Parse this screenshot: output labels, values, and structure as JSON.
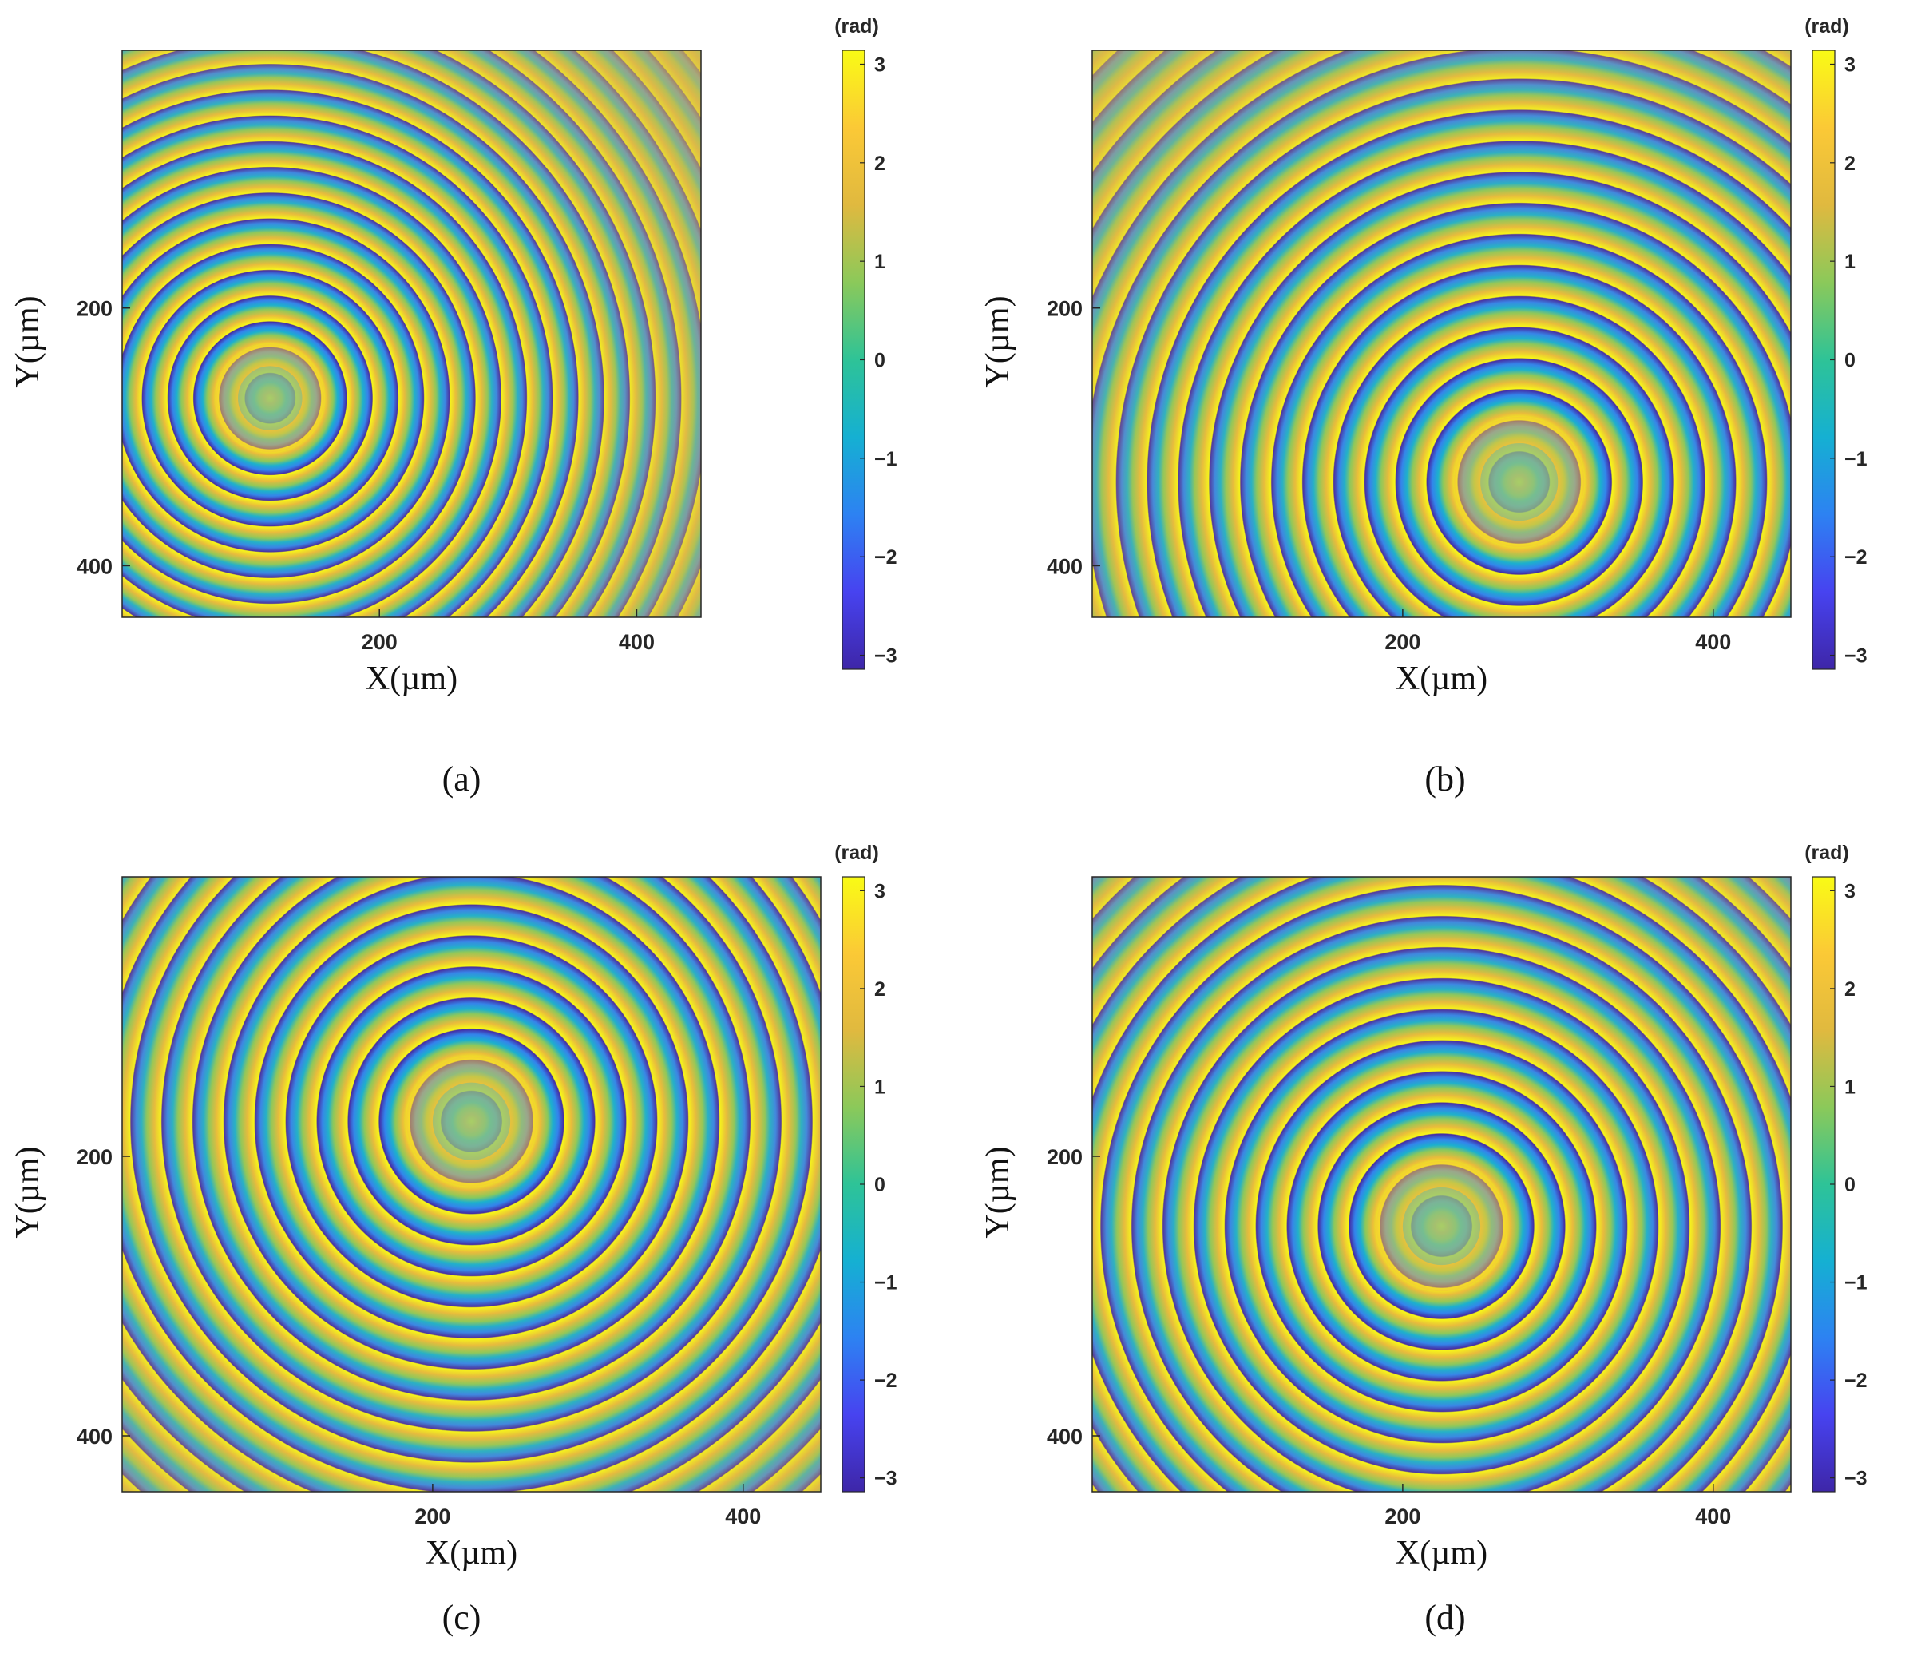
{
  "colors": {
    "colormap": [
      "#3e26a8",
      "#4743f0",
      "#2d82f2",
      "#15b0d2",
      "#2ec397",
      "#8bc95a",
      "#e0b93f",
      "#fbc936",
      "#f9fb15"
    ],
    "background": "#d7b94e"
  },
  "chart_data": [
    {
      "type": "heatmap",
      "panel_label": "(a)",
      "xlabel": "X(µm)",
      "ylabel": "Y(µm)",
      "xlim": [
        0,
        450
      ],
      "ylim": [
        440,
        0
      ],
      "xticks": [
        200,
        400
      ],
      "yticks": [
        200,
        400
      ],
      "ring_center": [
        115,
        270
      ],
      "ring_spacing": 20,
      "colorbar": {
        "label": "(rad)",
        "range": [
          -3.1416,
          3.1416
        ],
        "ticks": [
          3,
          2,
          1,
          0,
          -1,
          -2,
          -3
        ]
      }
    },
    {
      "type": "heatmap",
      "panel_label": "(b)",
      "xlabel": "X(µm)",
      "ylabel": "Y(µm)",
      "xlim": [
        0,
        450
      ],
      "ylim": [
        440,
        0
      ],
      "xticks": [
        200,
        400
      ],
      "yticks": [
        200,
        400
      ],
      "ring_center": [
        275,
        335
      ],
      "ring_spacing": 20,
      "colorbar": {
        "label": "(rad)",
        "range": [
          -3.1416,
          3.1416
        ],
        "ticks": [
          3,
          2,
          1,
          0,
          -1,
          -2,
          -3
        ]
      }
    },
    {
      "type": "heatmap",
      "panel_label": "(c)",
      "xlabel": "X(µm)",
      "ylabel": "Y(µm)",
      "xlim": [
        0,
        450
      ],
      "ylim": [
        440,
        0
      ],
      "xticks": [
        200,
        400
      ],
      "yticks": [
        200,
        400
      ],
      "ring_center": [
        225,
        175
      ],
      "ring_spacing": 20,
      "colorbar": {
        "label": "(rad)",
        "range": [
          -3.1416,
          3.1416
        ],
        "ticks": [
          3,
          2,
          1,
          0,
          -1,
          -2,
          -3
        ]
      }
    },
    {
      "type": "heatmap",
      "panel_label": "(d)",
      "xlabel": "X(µm)",
      "ylabel": "Y(µm)",
      "xlim": [
        0,
        450
      ],
      "ylim": [
        440,
        0
      ],
      "xticks": [
        200,
        400
      ],
      "yticks": [
        200,
        400
      ],
      "ring_center": [
        225,
        250
      ],
      "ring_spacing": 20,
      "colorbar": {
        "label": "(rad)",
        "range": [
          -3.1416,
          3.1416
        ],
        "ticks": [
          3,
          2,
          1,
          0,
          -1,
          -2,
          -3
        ]
      }
    }
  ]
}
